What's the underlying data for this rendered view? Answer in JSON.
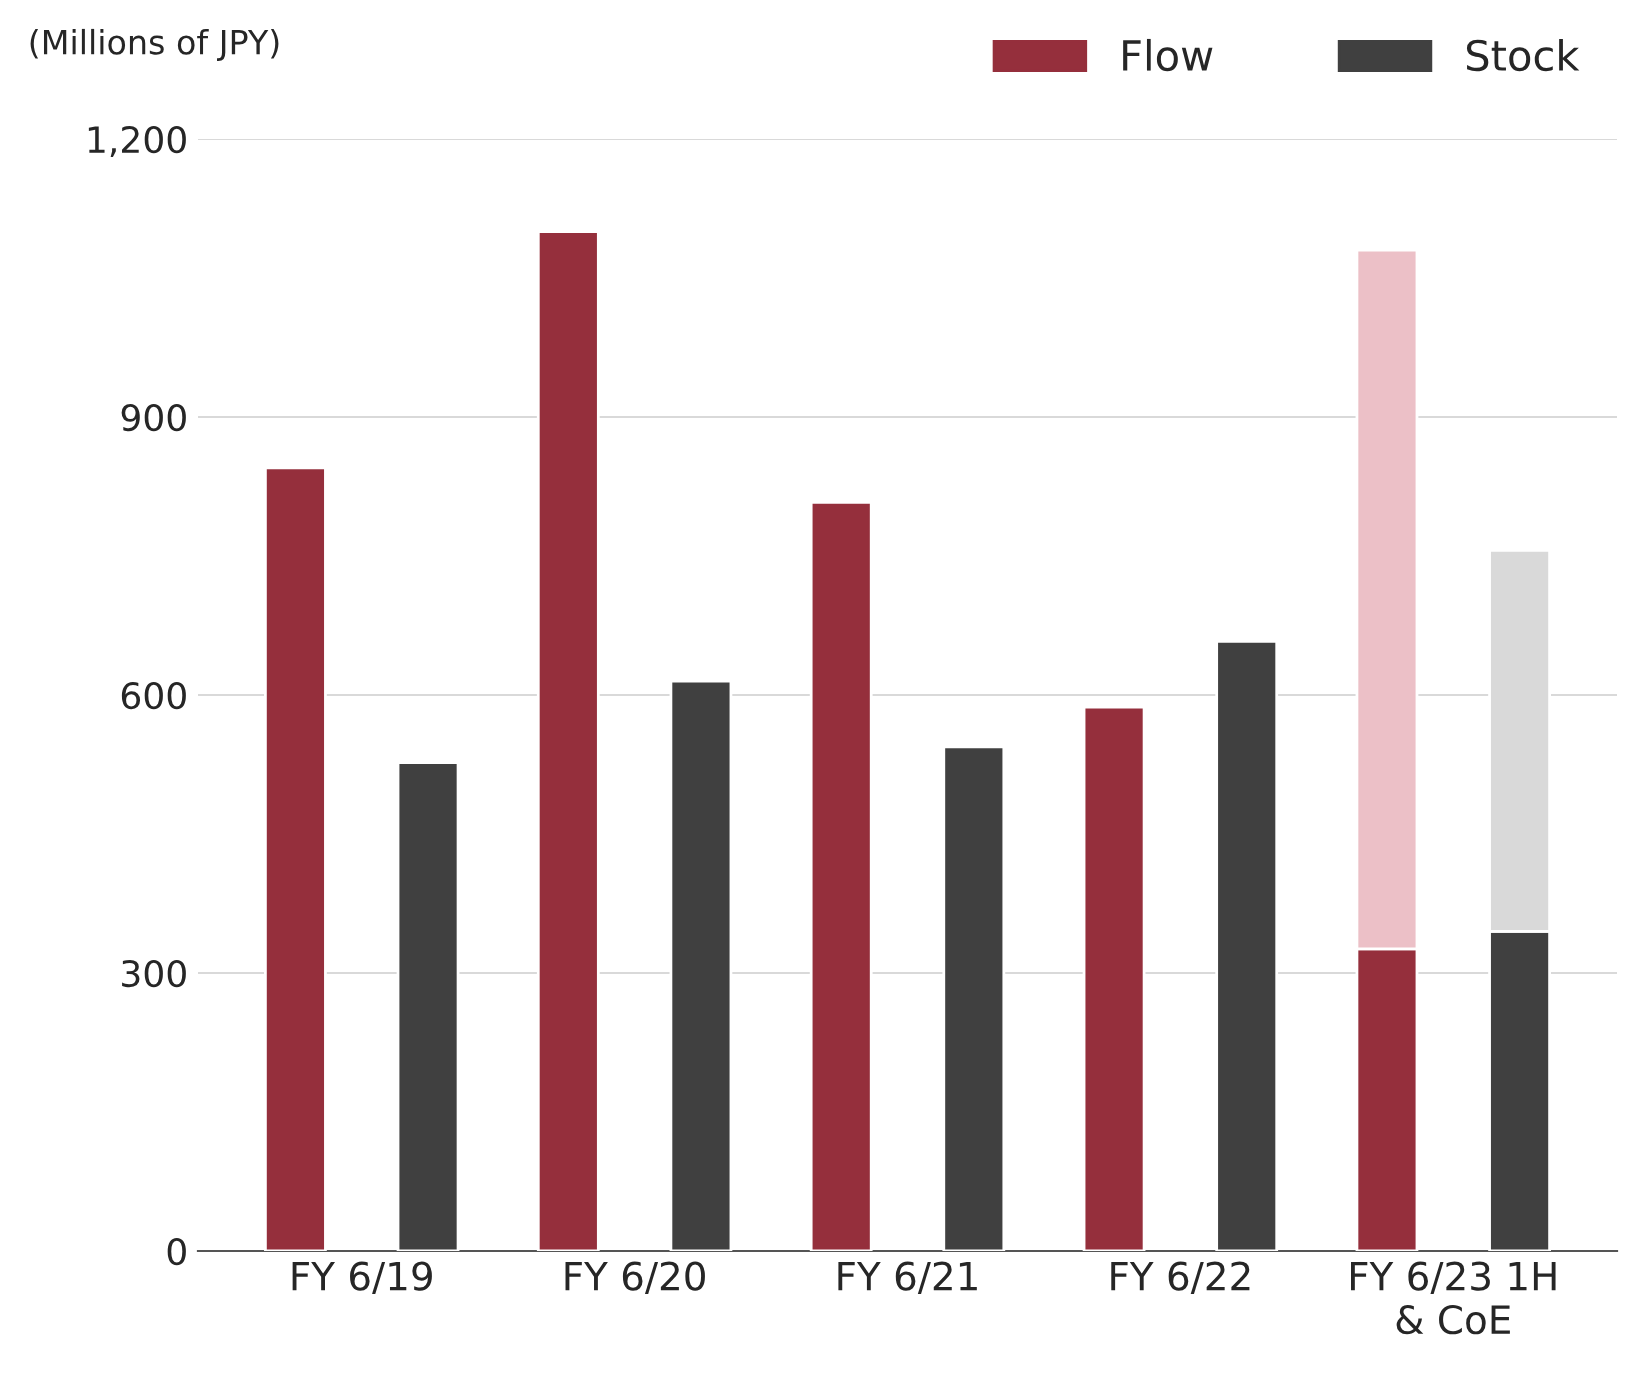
{
  "chart_data": {
    "type": "bar",
    "ylabel": "(Millions of JPY)",
    "categories": [
      "FY 6/19",
      "FY 6/20",
      "FY 6/21",
      "FY 6/22",
      "FY 6/23 1H\n& CoE"
    ],
    "series": [
      {
        "name": "Flow",
        "color": "#952f3c",
        "values": [
          845,
          1100,
          808,
          587,
          326
        ]
      },
      {
        "name": "Stock",
        "color": "#404040",
        "values": [
          527,
          615,
          544,
          658,
          345
        ]
      },
      {
        "color": "#ecc0c7",
        "values": [
          null,
          null,
          null,
          null,
          754
        ],
        "base": [
          null,
          null,
          null,
          null,
          326
        ]
      },
      {
        "color": "#d9d9d9",
        "values": [
          null,
          null,
          null,
          null,
          411
        ],
        "base": [
          null,
          null,
          null,
          null,
          345
        ]
      }
    ],
    "ylim": [
      0,
      1200
    ],
    "yticks": [
      0,
      300,
      600,
      900,
      {
        "value": 1200,
        "label": "1,200"
      }
    ],
    "grid": "y",
    "legend": "top right"
  }
}
